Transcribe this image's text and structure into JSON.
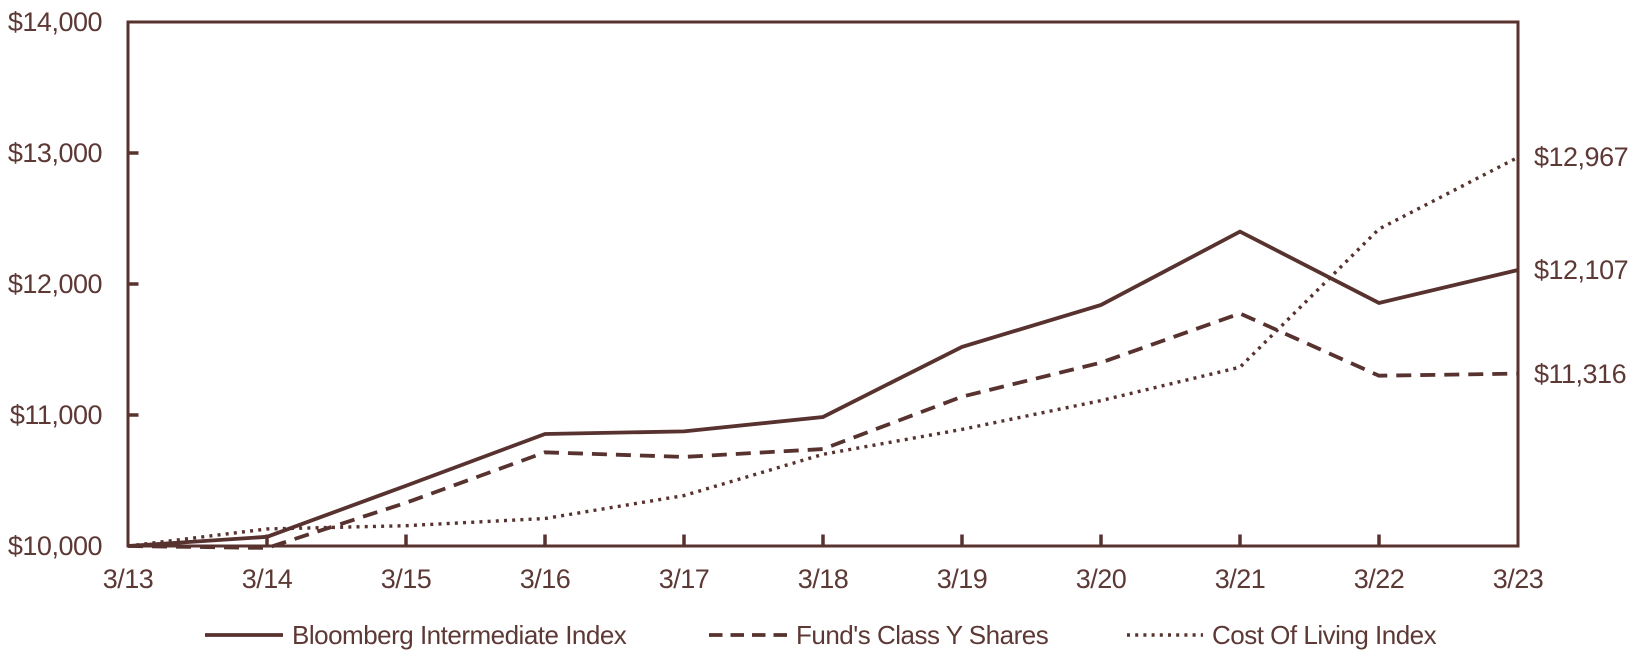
{
  "chart_data": {
    "type": "line",
    "categories": [
      "3/13",
      "3/14",
      "3/15",
      "3/16",
      "3/17",
      "3/18",
      "3/19",
      "3/20",
      "3/21",
      "3/22",
      "3/23"
    ],
    "series": [
      {
        "name": "Bloomberg Intermediate Index",
        "line_style": "solid",
        "end_label": "$12,107",
        "values": [
          10000,
          10070,
          10460,
          10855,
          10875,
          10985,
          11520,
          11840,
          12400,
          11855,
          12107
        ]
      },
      {
        "name": "Fund's Class Y Shares",
        "line_style": "dashed",
        "end_label": "$11,316",
        "values": [
          10000,
          9985,
          10330,
          10715,
          10680,
          10740,
          11140,
          11400,
          11775,
          11300,
          11316
        ]
      },
      {
        "name": "Cost Of Living Index",
        "line_style": "dotted",
        "end_label": "$12,967",
        "values": [
          10000,
          10130,
          10155,
          10210,
          10385,
          10700,
          10890,
          11110,
          11365,
          12420,
          12967
        ]
      }
    ],
    "ylim": [
      10000,
      14000
    ],
    "y_ticks": {
      "values": [
        14000,
        13000,
        12000,
        11000,
        10000
      ],
      "labels": [
        "$14,000",
        "$13,000",
        "$12,000",
        "$11,000",
        "$10,000"
      ]
    },
    "grid": false,
    "legend_position": "bottom",
    "colors": {
      "line": "#57322f",
      "text": "#5d3936",
      "background": "#ffffff"
    }
  }
}
